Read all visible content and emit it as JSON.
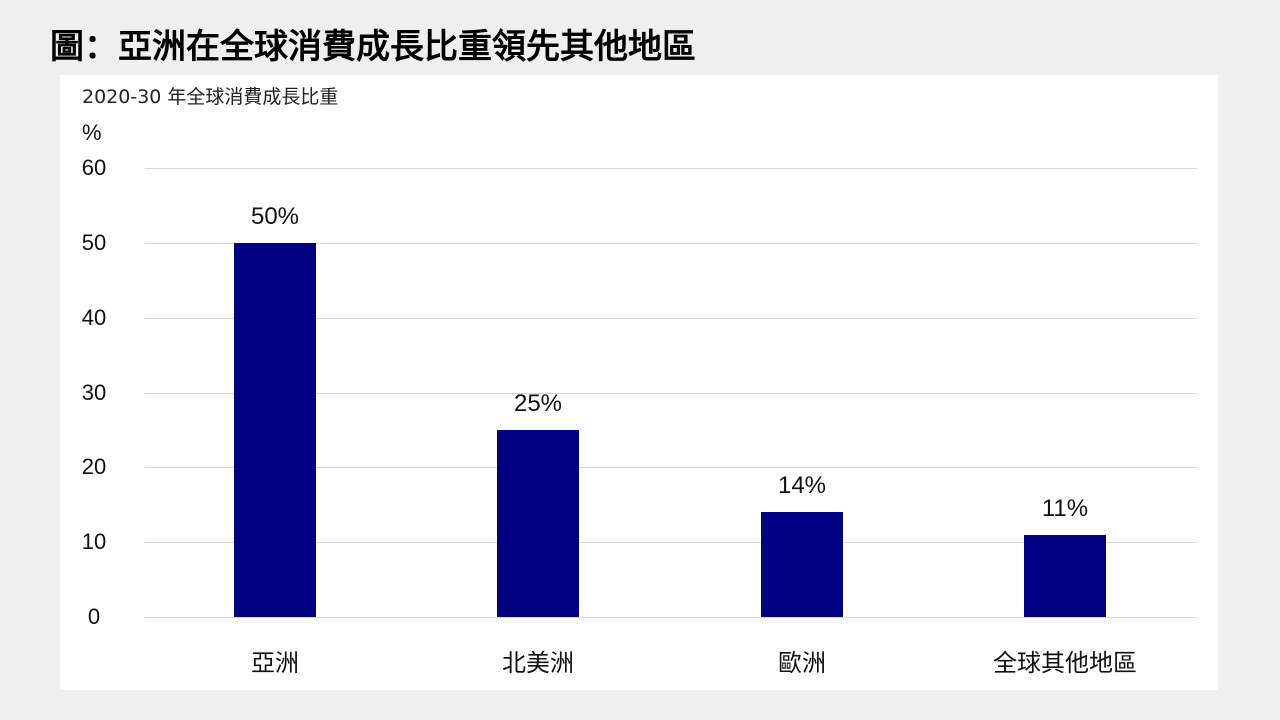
{
  "page": {
    "title": "圖：亞洲在全球消費成長比重領先其他地區",
    "subtitle": "2020-30 年全球消費成長比重",
    "unit": "%"
  },
  "colors": {
    "bar": "#000080",
    "background": "#efefef",
    "panel": "#ffffff"
  },
  "y_ticks": [
    "0",
    "10",
    "20",
    "30",
    "40",
    "50",
    "60"
  ],
  "bars": [
    {
      "label": "亞洲",
      "value": 50,
      "value_label": "50%"
    },
    {
      "label": "北美洲",
      "value": 25,
      "value_label": "25%"
    },
    {
      "label": "歐洲",
      "value": 14,
      "value_label": "14%"
    },
    {
      "label": "全球其他地區",
      "value": 11,
      "value_label": "11%"
    }
  ],
  "chart_data": {
    "type": "bar",
    "title": "圖：亞洲在全球消費成長比重領先其他地區",
    "subtitle": "2020-30 年全球消費成長比重",
    "categories": [
      "亞洲",
      "北美洲",
      "歐洲",
      "全球其他地區"
    ],
    "values": [
      50,
      25,
      14,
      11
    ],
    "data_labels": [
      "50%",
      "25%",
      "14%",
      "11%"
    ],
    "xlabel": "",
    "ylabel": "%",
    "ylim": [
      0,
      60
    ],
    "yticks": [
      0,
      10,
      20,
      30,
      40,
      50,
      60
    ],
    "grid": true,
    "legend": null
  }
}
